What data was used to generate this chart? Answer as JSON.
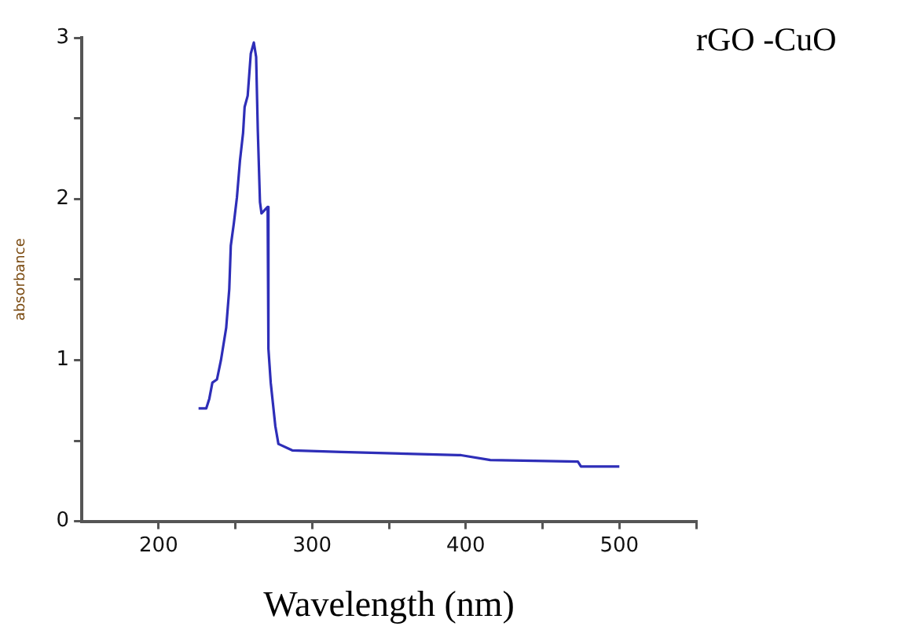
{
  "chart_data": {
    "type": "line",
    "title": "rGO -CuO",
    "xlabel": "Wavelength (nm)",
    "ylabel": "absorbance",
    "xlim": [
      150,
      550
    ],
    "xticks": [
      200,
      {
        "value": 250,
        "label": null
      },
      300,
      {
        "value": 350,
        "label": null
      },
      400,
      {
        "value": 450,
        "label": null
      },
      500,
      {
        "value": 550,
        "label": null
      }
    ],
    "ylim": [
      0,
      3
    ],
    "yticks": [
      0,
      {
        "value": 0.5,
        "label": null
      },
      1,
      {
        "value": 1.5,
        "label": null
      },
      2,
      {
        "value": 2.5,
        "label": null
      },
      3
    ],
    "grid": false,
    "legend": false,
    "marker": "none",
    "line_style": "solid",
    "series": [
      {
        "color": "#2e2eb8",
        "x": [
          226,
          231,
          233,
          235,
          238,
          240.6,
          244,
          246,
          247,
          249,
          251,
          253,
          255,
          256,
          258,
          260,
          262,
          263.5,
          264.6,
          266,
          267,
          271,
          271.5,
          273,
          276,
          278,
          287,
          319,
          395,
          397,
          416,
          473,
          475,
          500
        ],
        "values": [
          0.7,
          0.7,
          0.76,
          0.86,
          0.88,
          1.0,
          1.2,
          1.44,
          1.71,
          1.85,
          2.01,
          2.24,
          2.41,
          2.57,
          2.64,
          2.9,
          2.97,
          2.88,
          2.42,
          1.98,
          1.91,
          1.95,
          1.07,
          0.86,
          0.59,
          0.48,
          0.44,
          0.43,
          0.41,
          0.41,
          0.38,
          0.37,
          0.34,
          0.34
        ]
      }
    ]
  }
}
